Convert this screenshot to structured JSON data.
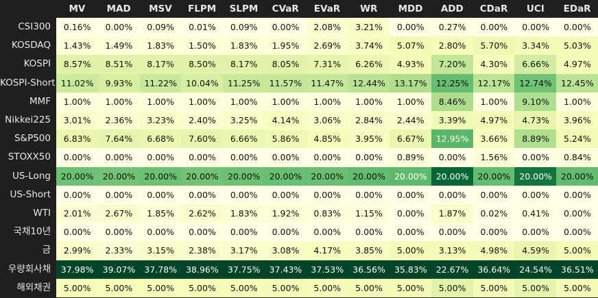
{
  "chart_data": {
    "type": "heatmap",
    "columns": [
      "MV",
      "MAD",
      "MSV",
      "FLPM",
      "SLPM",
      "CVaR",
      "EVaR",
      "WR",
      "MDD",
      "ADD",
      "CDaR",
      "UCI",
      "EDaR"
    ],
    "rows": [
      "CSI300",
      "KOSDAQ",
      "KOSPI",
      "KOSPI-Short",
      "MMF",
      "Nikkei225",
      "S&P500",
      "STOXX50",
      "US-Long",
      "US-Short",
      "WTI",
      "국채10년",
      "금",
      "우량회사채",
      "해외채권"
    ],
    "values": [
      [
        0.16,
        0.0,
        0.09,
        0.01,
        0.09,
        0.0,
        2.08,
        3.21,
        0.0,
        0.27,
        0.0,
        0.0,
        0.0
      ],
      [
        1.43,
        1.49,
        1.83,
        1.5,
        1.83,
        1.95,
        2.69,
        3.74,
        5.07,
        2.8,
        5.7,
        3.34,
        5.03
      ],
      [
        8.57,
        8.51,
        8.17,
        8.5,
        8.17,
        8.05,
        7.31,
        6.26,
        4.93,
        7.2,
        4.3,
        6.66,
        4.97
      ],
      [
        11.02,
        9.93,
        11.22,
        10.04,
        11.25,
        11.57,
        11.47,
        12.44,
        13.17,
        12.25,
        12.17,
        12.74,
        12.45
      ],
      [
        1.0,
        1.0,
        1.0,
        1.0,
        1.0,
        1.0,
        1.0,
        1.0,
        1.0,
        8.46,
        1.0,
        9.1,
        1.0
      ],
      [
        3.01,
        2.36,
        3.23,
        2.4,
        3.25,
        4.14,
        3.06,
        2.84,
        2.44,
        3.39,
        4.97,
        4.73,
        3.96
      ],
      [
        6.83,
        7.64,
        6.68,
        7.6,
        6.66,
        5.86,
        4.85,
        3.95,
        6.67,
        12.95,
        3.66,
        8.89,
        5.24
      ],
      [
        0.0,
        0.0,
        0.0,
        0.0,
        0.0,
        0.0,
        0.0,
        0.0,
        0.89,
        0.0,
        1.56,
        0.0,
        0.84
      ],
      [
        20.0,
        20.0,
        20.0,
        20.0,
        20.0,
        20.0,
        20.0,
        20.0,
        20.0,
        20.0,
        20.0,
        20.0,
        20.0
      ],
      [
        0.0,
        0.0,
        0.0,
        0.0,
        0.0,
        0.0,
        0.0,
        0.0,
        0.0,
        0.0,
        0.0,
        0.0,
        0.0
      ],
      [
        2.01,
        2.67,
        1.85,
        2.62,
        1.83,
        1.92,
        0.83,
        1.15,
        0.0,
        1.87,
        0.02,
        0.41,
        0.0
      ],
      [
        0.0,
        0.0,
        0.0,
        0.0,
        0.0,
        0.0,
        0.0,
        0.0,
        0.0,
        0.0,
        0.0,
        0.0,
        0.0
      ],
      [
        2.99,
        2.33,
        3.15,
        2.38,
        3.17,
        3.08,
        4.17,
        3.85,
        5.0,
        3.13,
        4.98,
        4.59,
        5.0
      ],
      [
        37.98,
        39.07,
        37.78,
        38.96,
        37.75,
        37.43,
        37.53,
        36.56,
        35.83,
        22.67,
        36.64,
        24.54,
        36.51
      ],
      [
        5.0,
        5.0,
        5.0,
        5.0,
        5.0,
        5.0,
        5.0,
        5.0,
        5.0,
        5.0,
        5.0,
        5.0,
        5.0
      ]
    ],
    "value_format": "percent_2dp",
    "colormap": "YlGn",
    "colors": {
      "background": "#1f1f1f",
      "header_text": "#e8e8e8",
      "row_label_text": "#e8e8e8",
      "dark_cell_text": "#ffffff",
      "light_cell_text": "#111111"
    }
  }
}
